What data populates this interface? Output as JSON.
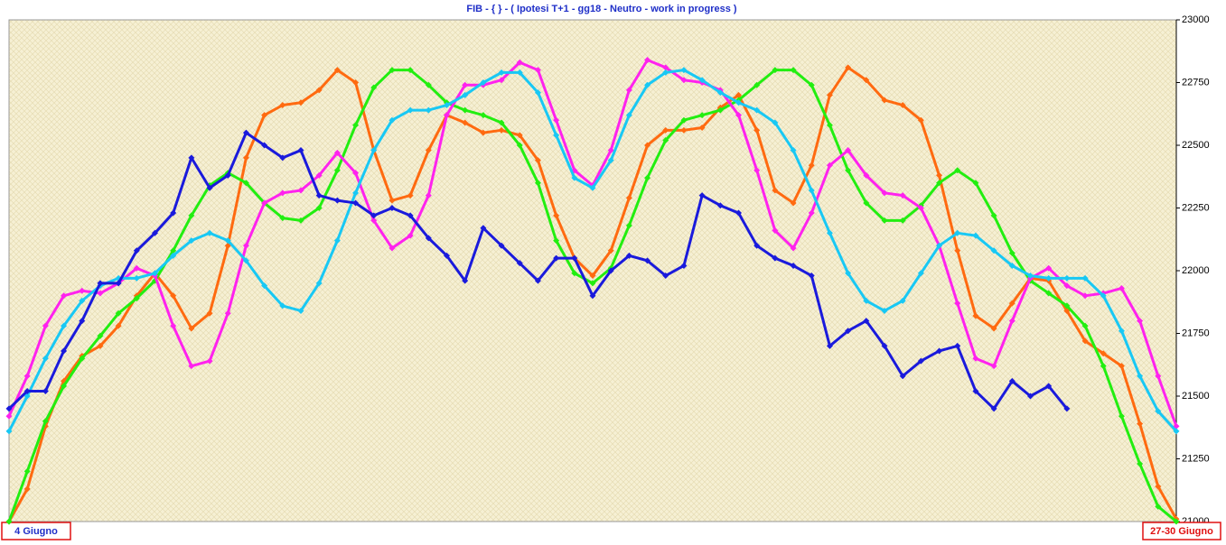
{
  "chart_data": {
    "type": "line",
    "title": "FIB  - { } - ( Ipotesi T+1 - gg18 - Neutro - work in progress )",
    "categories": [
      "4 Giugno",
      null,
      null,
      null,
      null,
      null,
      null,
      null,
      null,
      null,
      null,
      null,
      null,
      null,
      null,
      null,
      null,
      null,
      null,
      null,
      null,
      null,
      null,
      null,
      null,
      null,
      null,
      null,
      null,
      null,
      null,
      null,
      null,
      null,
      null,
      null,
      null,
      null,
      null,
      null,
      null,
      null,
      null,
      null,
      null,
      null,
      null,
      null,
      null,
      null,
      null,
      null,
      null,
      null,
      null,
      null,
      null,
      null,
      null,
      null,
      null,
      null,
      null,
      null,
      "27-30 Giugno"
    ],
    "ylim": [
      21000,
      23000
    ],
    "yticks": [
      21000,
      21250,
      21500,
      21750,
      22000,
      22250,
      22500,
      22750,
      23000
    ],
    "grid": false,
    "series": [
      {
        "color": "#ff6a10",
        "values": [
          21000,
          21130,
          21380,
          21560,
          21660,
          21700,
          21780,
          21900,
          21990,
          21900,
          21770,
          21830,
          22100,
          22450,
          22620,
          22660,
          22670,
          22720,
          22800,
          22750,
          22480,
          22280,
          22300,
          22480,
          22620,
          22590,
          22550,
          22560,
          22540,
          22440,
          22220,
          22050,
          21980,
          22080,
          22290,
          22500,
          22560,
          22560,
          22570,
          22650,
          22700,
          22560,
          22320,
          22270,
          22420,
          22700,
          22810,
          22760,
          22680,
          22660,
          22600,
          22380,
          22080,
          21820,
          21770,
          21870,
          21970,
          21960,
          21840,
          21720,
          21670,
          21620,
          21390,
          21140,
          21010
        ]
      },
      {
        "color": "#22ee10",
        "values": [
          21000,
          21200,
          21400,
          21540,
          21650,
          21740,
          21830,
          21890,
          21960,
          22080,
          22220,
          22340,
          22390,
          22350,
          22270,
          22210,
          22200,
          22250,
          22400,
          22580,
          22730,
          22800,
          22800,
          22740,
          22670,
          22640,
          22620,
          22590,
          22500,
          22350,
          22120,
          21990,
          21950,
          22010,
          22180,
          22370,
          22520,
          22600,
          22620,
          22640,
          22680,
          22740,
          22800,
          22800,
          22740,
          22580,
          22400,
          22270,
          22200,
          22200,
          22260,
          22350,
          22400,
          22350,
          22220,
          22070,
          21960,
          21910,
          21860,
          21780,
          21620,
          21420,
          21230,
          21060,
          21000
        ]
      },
      {
        "color": "#ff22ee",
        "values": [
          21420,
          21580,
          21780,
          21900,
          21920,
          21910,
          21950,
          22010,
          21980,
          21780,
          21620,
          21640,
          21830,
          22100,
          22270,
          22310,
          22320,
          22380,
          22470,
          22390,
          22200,
          22090,
          22140,
          22300,
          22620,
          22740,
          22740,
          22760,
          22830,
          22800,
          22600,
          22400,
          22340,
          22480,
          22720,
          22840,
          22810,
          22760,
          22750,
          22720,
          22620,
          22400,
          22160,
          22090,
          22230,
          22420,
          22480,
          22380,
          22310,
          22300,
          22250,
          22100,
          21870,
          21650,
          21620,
          21800,
          21970,
          22010,
          21940,
          21900,
          21910,
          21930,
          21800,
          21580,
          21380
        ]
      },
      {
        "color": "#18c8f4",
        "values": [
          21360,
          21500,
          21650,
          21780,
          21880,
          21940,
          21970,
          21970,
          21990,
          22060,
          22120,
          22150,
          22120,
          22040,
          21940,
          21860,
          21840,
          21950,
          22120,
          22310,
          22480,
          22600,
          22640,
          22640,
          22660,
          22700,
          22750,
          22790,
          22790,
          22710,
          22540,
          22370,
          22330,
          22440,
          22620,
          22740,
          22790,
          22800,
          22760,
          22710,
          22670,
          22640,
          22590,
          22480,
          22320,
          22150,
          21990,
          21880,
          21840,
          21880,
          21990,
          22100,
          22150,
          22140,
          22080,
          22020,
          21980,
          21970,
          21970,
          21970,
          21900,
          21760,
          21580,
          21440,
          21360
        ]
      },
      {
        "color": "#1a1adc",
        "values": [
          21450,
          21520,
          21520,
          21680,
          21800,
          21950,
          21950,
          22080,
          22150,
          22230,
          22450,
          22330,
          22380,
          22550,
          22500,
          22450,
          22480,
          22300,
          22280,
          22270,
          22220,
          22250,
          22220,
          22130,
          22060,
          21960,
          22170,
          22100,
          22030,
          21960,
          22050,
          22050,
          21900,
          22000,
          22060,
          22040,
          21980,
          22020,
          22300,
          22260,
          22230,
          22100,
          22050,
          22020,
          21980,
          21700,
          21760,
          21800,
          21700,
          21580,
          21640,
          21680,
          21700,
          21520,
          21450,
          21560,
          21500,
          21540,
          21450,
          null,
          null,
          null,
          null,
          null,
          null
        ]
      }
    ]
  }
}
